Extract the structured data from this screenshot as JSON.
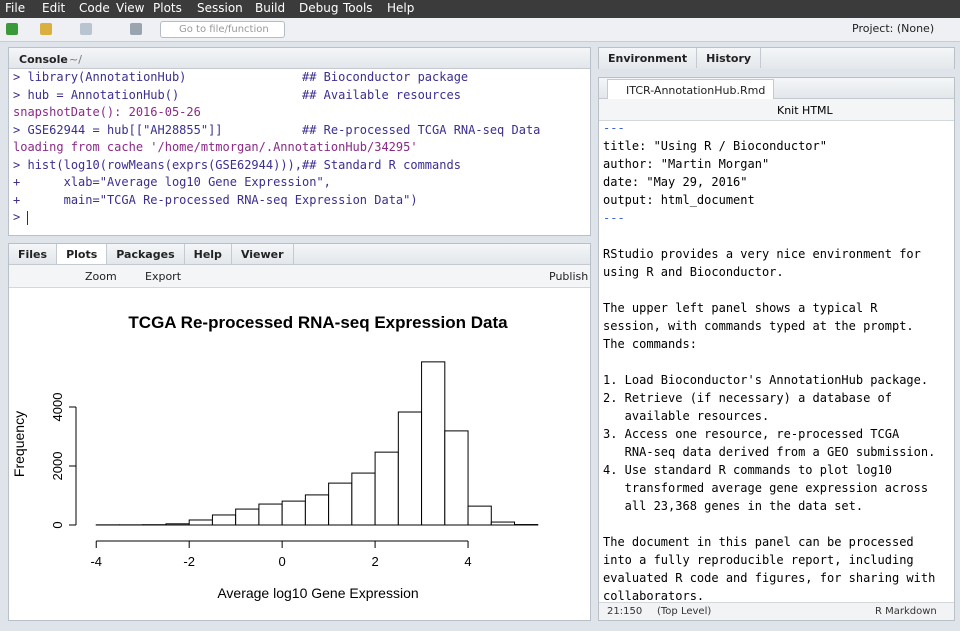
{
  "menu": [
    "File",
    "Edit",
    "Code",
    "View",
    "Plots",
    "Session",
    "Build",
    "Debug",
    "Tools",
    "Help"
  ],
  "toolbar": {
    "search": "Go to file/function",
    "project": "Project: (None)"
  },
  "console": {
    "title": "Console",
    "path": "~/",
    "lines": [
      {
        "prompt": ">",
        "code": "library(AnnotationHub)",
        "comment": "## Bioconductor package"
      },
      {
        "prompt": ">",
        "code": "hub = AnnotationHub()",
        "comment": "## Available resources"
      },
      {
        "output": "snapshotDate(): 2016-05-26"
      },
      {
        "prompt": ">",
        "code": "GSE62944 = hub[[\"AH28855\"]]",
        "comment": "## Re-processed TCGA RNA-seq Data"
      },
      {
        "output": "loading from cache '/home/mtmorgan/.AnnotationHub/34295'"
      },
      {
        "prompt": ">",
        "code": "hist(log10(rowMeans(exprs(GSE62944))),",
        "comment": "## Standard R commands"
      },
      {
        "prompt": "+",
        "code": "     xlab=\"Average log10 Gene Expression\","
      },
      {
        "prompt": "+",
        "code": "     main=\"TCGA Re-processed RNA-seq Expression Data\")"
      },
      {
        "prompt": ">"
      }
    ]
  },
  "plots_pane": {
    "tabs": [
      "Files",
      "Plots",
      "Packages",
      "Help",
      "Viewer"
    ],
    "zoom": "Zoom",
    "export": "Export",
    "publish": "Publish"
  },
  "plot": {
    "type": "histogram",
    "title": "TCGA Re-processed RNA-seq Expression Data",
    "xlabel": "Average log10 Gene Expression",
    "ylabel": "Frequency",
    "bins": [
      -4,
      -3.5,
      -3,
      -2.5,
      -2,
      -1.5,
      -1,
      -0.5,
      0,
      0.5,
      1,
      1.5,
      2,
      2.5,
      3,
      3.5,
      4,
      4.5,
      5,
      5.5
    ],
    "counts": [
      5,
      5,
      10,
      40,
      170,
      340,
      540,
      710,
      810,
      1020,
      1420,
      1760,
      2470,
      3830,
      5530,
      3190,
      640,
      100,
      15
    ],
    "xlim": [
      -4.5,
      6
    ],
    "ylim": [
      0,
      6000
    ],
    "xticks": [
      -4,
      -2,
      0,
      2,
      4
    ],
    "yticks": [
      0,
      2000,
      4000
    ]
  },
  "env_pane": {
    "tabs": [
      "Environment",
      "History"
    ]
  },
  "editor": {
    "file": "ITCR-AnnotationHub.Rmd",
    "knit": "Knit HTML",
    "blocks": [
      [
        "---",
        "title: \"Using R / Bioconductor\"",
        "author: \"Martin Morgan\"",
        "date: \"May 29, 2016\"",
        "output: html_document",
        "---"
      ],
      [
        "RStudio provides a very nice environment for",
        "using R and Bioconductor."
      ],
      [
        "The upper left panel shows a typical R",
        "session, with commands typed at the prompt.",
        "The commands:"
      ],
      [
        "1. Load Bioconductor's AnnotationHub package.",
        "2. Retrieve (if necessary) a database of",
        "   available resources.",
        "3. Access one resource, re-processed TCGA",
        "   RNA-seq data derived from a GEO submission.",
        "4. Use standard R commands to plot log10",
        "   transformed average gene expression across",
        "   all 23,368 genes in the data set."
      ],
      [
        "The document in this panel can be processed",
        "into a fully reproducible report, including",
        "evaluated R code and figures, for sharing with",
        "collaborators."
      ]
    ],
    "status": {
      "position": "21:150",
      "scope": "(Top Level)",
      "mode": "R Markdown"
    }
  }
}
